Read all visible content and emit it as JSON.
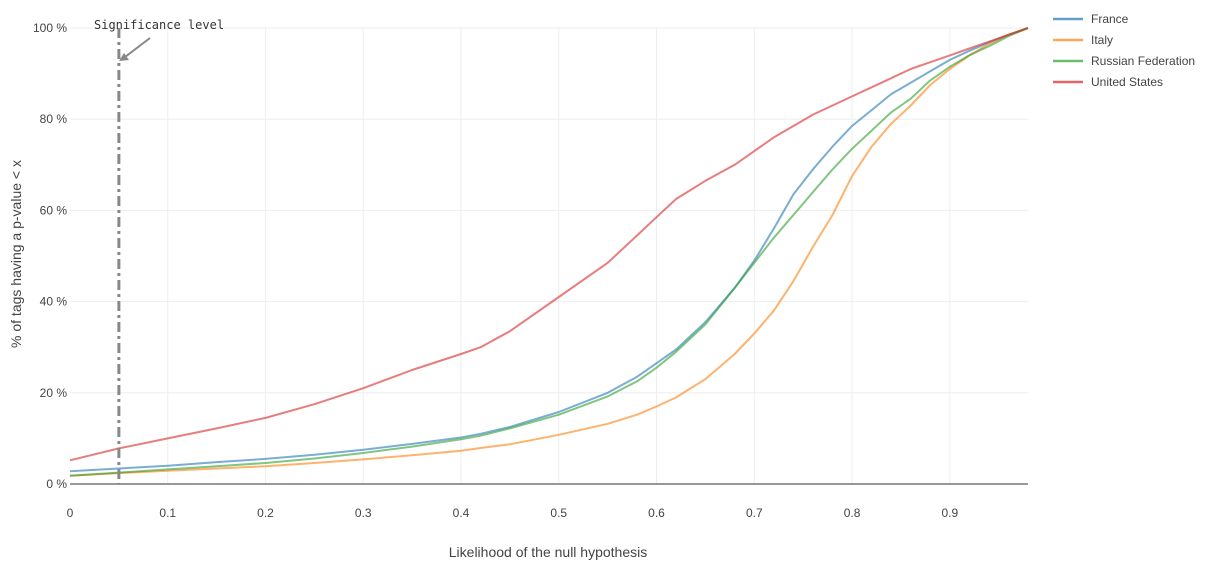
{
  "chart_data": {
    "type": "line",
    "xlabel": "Likelihood of the null hypothesis",
    "ylabel": "% of tags having a p-value < x",
    "xlim": [
      0,
      0.98
    ],
    "ylim": [
      0,
      100
    ],
    "x_ticks": [
      "0",
      "0.1",
      "0.2",
      "0.3",
      "0.4",
      "0.5",
      "0.6",
      "0.7",
      "0.8",
      "0.9"
    ],
    "y_ticks": [
      "0 %",
      "20 %",
      "40 %",
      "60 %",
      "80 %",
      "100 %"
    ],
    "grid": true,
    "legend_position": "top-right",
    "annotation": {
      "text": "Significance level",
      "x": 0.05
    },
    "x": [
      0,
      0.05,
      0.1,
      0.15,
      0.2,
      0.25,
      0.3,
      0.35,
      0.4,
      0.42,
      0.45,
      0.5,
      0.55,
      0.58,
      0.6,
      0.62,
      0.65,
      0.68,
      0.7,
      0.72,
      0.74,
      0.76,
      0.78,
      0.8,
      0.82,
      0.84,
      0.86,
      0.88,
      0.9,
      0.92,
      0.94,
      0.96,
      0.98
    ],
    "series": [
      {
        "name": "France",
        "color": "#1f77b4",
        "values": [
          2.8,
          3.4,
          4.0,
          4.8,
          5.5,
          6.4,
          7.5,
          8.8,
          10.2,
          11.0,
          12.5,
          15.8,
          20.0,
          23.5,
          26.5,
          29.5,
          35.5,
          43.0,
          49.0,
          56.0,
          63.5,
          69.0,
          74.0,
          78.5,
          82.0,
          85.5,
          88.0,
          90.5,
          93.0,
          95.0,
          96.8,
          98.5,
          100
        ]
      },
      {
        "name": "Italy",
        "color": "#ff7f0e",
        "values": [
          1.8,
          2.4,
          2.9,
          3.4,
          3.9,
          4.6,
          5.4,
          6.3,
          7.3,
          7.9,
          8.7,
          10.8,
          13.2,
          15.2,
          17.0,
          19.0,
          23.0,
          28.5,
          33.0,
          38.0,
          44.5,
          52.0,
          59.0,
          67.5,
          74.0,
          79.0,
          83.0,
          87.5,
          91.0,
          94.0,
          96.5,
          98.5,
          100
        ]
      },
      {
        "name": "Russian Federation",
        "color": "#2ca02c",
        "values": [
          1.8,
          2.5,
          3.2,
          3.9,
          4.6,
          5.6,
          6.8,
          8.2,
          9.8,
          10.6,
          12.2,
          15.2,
          19.2,
          22.5,
          25.5,
          29.0,
          35.0,
          43.0,
          48.5,
          54.0,
          59.0,
          64.0,
          69.0,
          73.5,
          77.5,
          81.5,
          84.5,
          88.5,
          91.5,
          94.0,
          96.0,
          98.2,
          100
        ]
      },
      {
        "name": "United States",
        "color": "#d62728",
        "values": [
          5.2,
          7.8,
          10.0,
          12.2,
          14.5,
          17.5,
          21.0,
          25.0,
          28.5,
          30.0,
          33.5,
          41.0,
          48.5,
          54.5,
          58.5,
          62.5,
          66.5,
          70.0,
          73.0,
          76.0,
          78.5,
          81.0,
          83.0,
          85.0,
          87.0,
          89.0,
          91.0,
          92.5,
          94.0,
          95.5,
          97.0,
          98.5,
          100
        ]
      }
    ]
  }
}
